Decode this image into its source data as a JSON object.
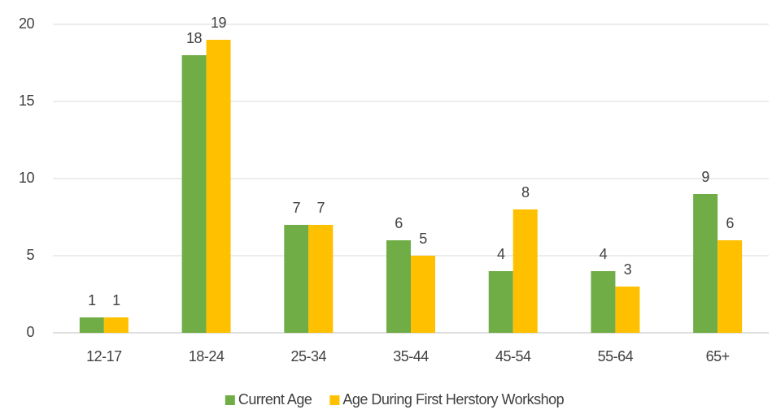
{
  "chart_data": {
    "type": "bar",
    "categories": [
      "12-17",
      "18-24",
      "25-34",
      "35-44",
      "45-54",
      "55-64",
      "65+"
    ],
    "series": [
      {
        "name": "Current Age",
        "color": "#70ad47",
        "values": [
          1,
          18,
          7,
          6,
          4,
          4,
          9
        ]
      },
      {
        "name": "Age During First Herstory Workshop",
        "color": "#ffc000",
        "values": [
          1,
          19,
          7,
          5,
          8,
          3,
          6
        ]
      }
    ],
    "ylim": [
      0,
      20
    ],
    "yticks": [
      0,
      5,
      10,
      15,
      20
    ],
    "grid": true,
    "legend": "bottom"
  }
}
